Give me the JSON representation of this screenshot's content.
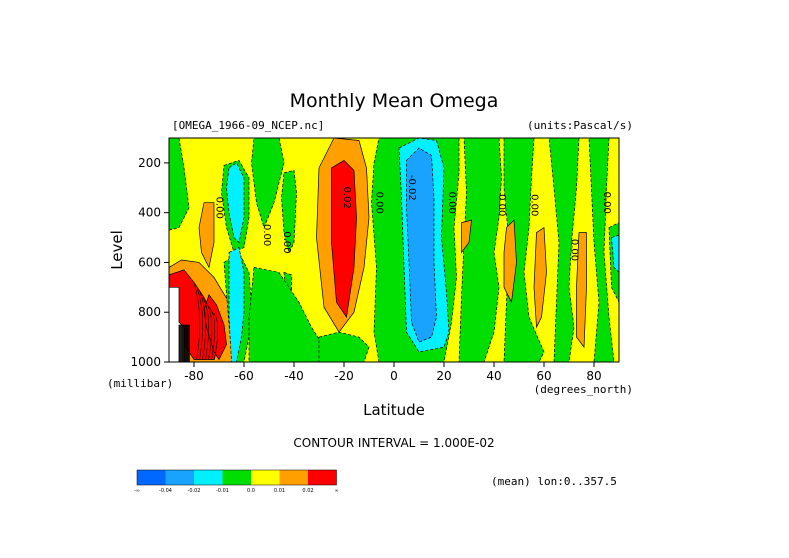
{
  "chart_data": {
    "type": "heatmap",
    "title": "Monthly Mean Omega",
    "file_label": "[OMEGA_1966-09_NCEP.nc]",
    "units_label": "(units:Pascal/s)",
    "xlabel": "Latitude",
    "ylabel": "Level",
    "x_unit_label": "(degrees_north)",
    "y_unit_label": "(millibar)",
    "xlim": [
      -90,
      90
    ],
    "ylim": [
      1000,
      100
    ],
    "x_ticks": [
      -80,
      -60,
      -40,
      -20,
      0,
      20,
      40,
      60,
      80
    ],
    "x_tick_labels": [
      "-80",
      "-60",
      "-40",
      "-20",
      "0",
      "20",
      "40",
      "60",
      "80"
    ],
    "y_ticks": [
      200,
      400,
      600,
      800,
      1000
    ],
    "y_tick_labels": [
      "200",
      "400",
      "600",
      "800",
      "1000"
    ],
    "contour_interval_text": "CONTOUR INTERVAL = 1.000E-02",
    "mean_text": "(mean) lon:0..357.5",
    "contour_labels": [
      {
        "text": "0.00",
        "lat": -71,
        "lev": 380
      },
      {
        "text": "0.00",
        "lat": -52,
        "lev": 490
      },
      {
        "text": "0.00",
        "lat": -44,
        "lev": 520
      },
      {
        "text": "0.02",
        "lat": -20,
        "lev": 340
      },
      {
        "text": "0.00",
        "lat": -7,
        "lev": 360
      },
      {
        "text": "-0.02",
        "lat": 6,
        "lev": 300
      },
      {
        "text": "0.00",
        "lat": 22,
        "lev": 360
      },
      {
        "text": "0.00",
        "lat": 42,
        "lev": 370
      },
      {
        "text": "0.00",
        "lat": 55,
        "lev": 370
      },
      {
        "text": "0.00",
        "lat": 71,
        "lev": 550
      },
      {
        "text": "0.00",
        "lat": 84,
        "lev": 360
      }
    ],
    "colorbar": {
      "colors": [
        "#0068ff",
        "#19a3ff",
        "#00f0ff",
        "#00dd00",
        "#ffff00",
        "#ff9f00",
        "#ff0000"
      ],
      "labels": [
        "-∞",
        "-0.04",
        "-0.02",
        "-0.01",
        "0.0",
        "0.01",
        "0.02",
        "∞"
      ]
    },
    "regions": [
      {
        "level": 0.01,
        "color": "#ff9f00",
        "poly": [
          [
            -90,
            620
          ],
          [
            -85,
            590
          ],
          [
            -78,
            600
          ],
          [
            -72,
            660
          ],
          [
            -66,
            760
          ],
          [
            -62,
            900
          ],
          [
            -63,
            1000
          ],
          [
            -90,
            1000
          ]
        ]
      },
      {
        "level": 0.02,
        "color": "#ff0000",
        "poly": [
          [
            -90,
            650
          ],
          [
            -84,
            630
          ],
          [
            -80,
            680
          ],
          [
            -76,
            740
          ],
          [
            -72,
            830
          ],
          [
            -70,
            920
          ],
          [
            -72,
            990
          ],
          [
            -80,
            990
          ],
          [
            -86,
            900
          ],
          [
            -90,
            860
          ]
        ]
      },
      {
        "level": 0.02,
        "color": "#ff0000",
        "poly": [
          [
            -74,
            730
          ],
          [
            -71,
            770
          ],
          [
            -68,
            850
          ],
          [
            -67,
            930
          ],
          [
            -70,
            990
          ],
          [
            -72,
            960
          ],
          [
            -75,
            860
          ],
          [
            -76,
            790
          ]
        ]
      },
      {
        "level": -0.01,
        "color": "#00dd00",
        "poly": [
          [
            -68,
            600
          ],
          [
            -62,
            560
          ],
          [
            -58,
            640
          ],
          [
            -57,
            780
          ],
          [
            -58,
            900
          ],
          [
            -60,
            1000
          ],
          [
            -64,
            1000
          ],
          [
            -66,
            850
          ]
        ]
      },
      {
        "level": -0.01,
        "color": "#00dd00",
        "poly": [
          [
            -68,
            210
          ],
          [
            -62,
            190
          ],
          [
            -58,
            260
          ],
          [
            -58,
            420
          ],
          [
            -60,
            540
          ],
          [
            -64,
            560
          ],
          [
            -67,
            460
          ],
          [
            -69,
            320
          ]
        ]
      },
      {
        "level": -0.02,
        "color": "#00f0ff",
        "poly": [
          [
            -66,
            220
          ],
          [
            -63,
            200
          ],
          [
            -60,
            260
          ],
          [
            -60,
            420
          ],
          [
            -62,
            520
          ],
          [
            -64,
            500
          ],
          [
            -66,
            400
          ],
          [
            -67,
            300
          ]
        ]
      },
      {
        "level": -0.02,
        "color": "#00f0ff",
        "poly": [
          [
            -66,
            560
          ],
          [
            -62,
            540
          ],
          [
            -60,
            640
          ],
          [
            -60,
            800
          ],
          [
            -61,
            900
          ],
          [
            -63,
            1000
          ],
          [
            -65,
            1000
          ],
          [
            -66,
            820
          ]
        ]
      },
      {
        "level": -0.01,
        "color": "#00dd00",
        "poly": [
          [
            -90,
            100
          ],
          [
            -86,
            100
          ],
          [
            -84,
            220
          ],
          [
            -82,
            380
          ],
          [
            -86,
            460
          ],
          [
            -90,
            470
          ]
        ]
      },
      {
        "level": -0.01,
        "color": "#00dd00",
        "poly": [
          [
            -56,
            100
          ],
          [
            -46,
            100
          ],
          [
            -44,
            200
          ],
          [
            -48,
            360
          ],
          [
            -52,
            460
          ],
          [
            -55,
            360
          ],
          [
            -57,
            200
          ]
        ]
      },
      {
        "level": -0.01,
        "color": "#00dd00",
        "poly": [
          [
            -44,
            240
          ],
          [
            -40,
            230
          ],
          [
            -39,
            320
          ],
          [
            -40,
            520
          ],
          [
            -42,
            560
          ],
          [
            -44,
            480
          ],
          [
            -45,
            340
          ]
        ]
      },
      {
        "level": -0.01,
        "color": "#00dd00",
        "poly": [
          [
            -44,
            640
          ],
          [
            -41,
            650
          ],
          [
            -41,
            720
          ],
          [
            -43,
            740
          ]
        ]
      },
      {
        "level": -0.01,
        "color": "#00dd00",
        "poly": [
          [
            -56,
            620
          ],
          [
            -46,
            640
          ],
          [
            -38,
            760
          ],
          [
            -33,
            860
          ],
          [
            -28,
            940
          ],
          [
            -30,
            1000
          ],
          [
            -58,
            1000
          ],
          [
            -58,
            820
          ]
        ]
      },
      {
        "level": -0.01,
        "color": "#00dd00",
        "poly": [
          [
            -30,
            900
          ],
          [
            -22,
            880
          ],
          [
            -14,
            900
          ],
          [
            -10,
            940
          ],
          [
            -12,
            1000
          ],
          [
            -30,
            1000
          ]
        ]
      },
      {
        "level": 0.01,
        "color": "#ff9f00",
        "poly": [
          [
            -30,
            220
          ],
          [
            -24,
            100
          ],
          [
            -14,
            110
          ],
          [
            -11,
            220
          ],
          [
            -10,
            420
          ],
          [
            -12,
            620
          ],
          [
            -16,
            800
          ],
          [
            -22,
            880
          ],
          [
            -28,
            780
          ],
          [
            -31,
            500
          ]
        ]
      },
      {
        "level": 0.02,
        "color": "#ff0000",
        "poly": [
          [
            -25,
            220
          ],
          [
            -20,
            190
          ],
          [
            -16,
            230
          ],
          [
            -15,
            420
          ],
          [
            -16,
            620
          ],
          [
            -19,
            820
          ],
          [
            -23,
            760
          ],
          [
            -25,
            520
          ]
        ]
      },
      {
        "level": -0.01,
        "color": "#00dd00",
        "poly": [
          [
            -6,
            100
          ],
          [
            26,
            100
          ],
          [
            26,
            240
          ],
          [
            24,
            460
          ],
          [
            25,
            660
          ],
          [
            23,
            840
          ],
          [
            20,
            1000
          ],
          [
            -6,
            1000
          ],
          [
            -8,
            880
          ],
          [
            -7,
            620
          ],
          [
            -9,
            360
          ],
          [
            -8,
            200
          ]
        ]
      },
      {
        "level": -0.02,
        "color": "#00f0ff",
        "poly": [
          [
            2,
            140
          ],
          [
            10,
            100
          ],
          [
            17,
            110
          ],
          [
            20,
            220
          ],
          [
            19,
            500
          ],
          [
            21,
            720
          ],
          [
            22,
            880
          ],
          [
            20,
            940
          ],
          [
            10,
            960
          ],
          [
            5,
            880
          ],
          [
            4,
            620
          ],
          [
            3,
            340
          ]
        ]
      },
      {
        "level": -0.04,
        "color": "#19a3ff",
        "poly": [
          [
            5,
            190
          ],
          [
            10,
            140
          ],
          [
            15,
            170
          ],
          [
            16,
            340
          ],
          [
            16,
            600
          ],
          [
            17,
            820
          ],
          [
            15,
            900
          ],
          [
            10,
            920
          ],
          [
            7,
            840
          ],
          [
            6,
            600
          ],
          [
            5,
            380
          ]
        ]
      },
      {
        "level": -0.01,
        "color": "#00dd00",
        "poly": [
          [
            28,
            100
          ],
          [
            42,
            100
          ],
          [
            43,
            260
          ],
          [
            42,
            420
          ],
          [
            40,
            560
          ],
          [
            42,
            700
          ],
          [
            40,
            880
          ],
          [
            36,
            1000
          ],
          [
            26,
            1000
          ],
          [
            27,
            740
          ],
          [
            28,
            520
          ],
          [
            29,
            320
          ]
        ]
      },
      {
        "level": 0.01,
        "color": "#ff9f00",
        "poly": [
          [
            27,
            440
          ],
          [
            31,
            430
          ],
          [
            30,
            520
          ],
          [
            27,
            560
          ]
        ]
      },
      {
        "level": -0.01,
        "color": "#00dd00",
        "poly": [
          [
            44,
            100
          ],
          [
            56,
            100
          ],
          [
            55,
            260
          ],
          [
            54,
            460
          ],
          [
            52,
            640
          ],
          [
            54,
            820
          ],
          [
            60,
            960
          ],
          [
            58,
            1000
          ],
          [
            44,
            1000
          ],
          [
            45,
            760
          ],
          [
            46,
            520
          ],
          [
            44,
            300
          ]
        ]
      },
      {
        "level": -0.01,
        "color": "#00dd00",
        "poly": [
          [
            62,
            100
          ],
          [
            74,
            100
          ],
          [
            73,
            300
          ],
          [
            71,
            520
          ],
          [
            70,
            700
          ],
          [
            72,
            860
          ],
          [
            70,
            1000
          ],
          [
            64,
            1000
          ],
          [
            65,
            760
          ],
          [
            66,
            520
          ],
          [
            64,
            300
          ]
        ]
      },
      {
        "level": -0.01,
        "color": "#00dd00",
        "poly": [
          [
            78,
            100
          ],
          [
            86,
            100
          ],
          [
            85,
            300
          ],
          [
            84,
            560
          ],
          [
            86,
            820
          ],
          [
            88,
            1000
          ],
          [
            80,
            1000
          ],
          [
            82,
            760
          ],
          [
            80,
            520
          ]
        ]
      },
      {
        "level": -0.01,
        "color": "#00dd00",
        "poly": [
          [
            86,
            460
          ],
          [
            90,
            440
          ],
          [
            90,
            760
          ],
          [
            87,
            700
          ]
        ]
      },
      {
        "level": -0.02,
        "color": "#00f0ff",
        "poly": [
          [
            87,
            500
          ],
          [
            90,
            490
          ],
          [
            90,
            640
          ],
          [
            88,
            620
          ]
        ]
      },
      {
        "level": 0.01,
        "color": "#ff9f00",
        "poly": [
          [
            45,
            460
          ],
          [
            48,
            430
          ],
          [
            49,
            600
          ],
          [
            47,
            760
          ],
          [
            44,
            700
          ],
          [
            44,
            560
          ]
        ]
      },
      {
        "level": 0.01,
        "color": "#ff9f00",
        "poly": [
          [
            57,
            480
          ],
          [
            60,
            460
          ],
          [
            61,
            640
          ],
          [
            59,
            820
          ],
          [
            57,
            860
          ],
          [
            56,
            700
          ]
        ]
      },
      {
        "level": 0.01,
        "color": "#ff9f00",
        "poly": [
          [
            74,
            480
          ],
          [
            77,
            480
          ],
          [
            77,
            700
          ],
          [
            76,
            940
          ],
          [
            73,
            900
          ],
          [
            73,
            700
          ]
        ]
      },
      {
        "level": 0.01,
        "color": "#ff9f00",
        "poly": [
          [
            -76,
            360
          ],
          [
            -72,
            360
          ],
          [
            -72,
            520
          ],
          [
            -74,
            620
          ],
          [
            -77,
            560
          ],
          [
            -78,
            460
          ]
        ]
      },
      {
        "level": 0.0,
        "color": "#ffffff",
        "poly": [
          [
            -90,
            700
          ],
          [
            -86,
            700
          ],
          [
            -86,
            840
          ],
          [
            -84,
            860
          ],
          [
            -84,
            1000
          ],
          [
            -90,
            1000
          ]
        ]
      }
    ]
  }
}
